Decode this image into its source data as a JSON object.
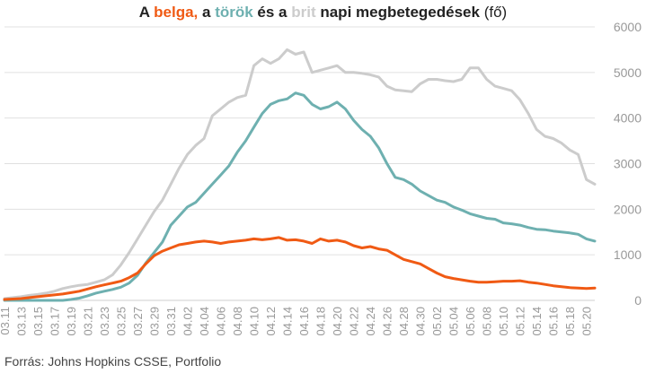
{
  "title": {
    "prefix": "A ",
    "belgian": "belga,",
    "mid1": " a ",
    "turkish": "török",
    "mid2": " és a ",
    "british": "brit",
    "suffix": " napi megbetegedések",
    "paren": " (fő)"
  },
  "source": "Forrás: Johns Hopkins CSSE, Portfolio",
  "colors": {
    "belgian": "#f05a14",
    "turkish": "#6eb0b0",
    "british": "#cccccc",
    "grid": "#e0e0e0",
    "tick_text": "#999999"
  },
  "chart_data": {
    "type": "line",
    "title": "A belga, a török és a brit napi megbetegedések (fő)",
    "xlabel": "",
    "ylabel": "",
    "ylim": [
      0,
      6000
    ],
    "yticks": [
      0,
      1000,
      2000,
      3000,
      4000,
      5000,
      6000
    ],
    "grid": true,
    "legend": "none (series named by colored words in title)",
    "x": [
      "03.11",
      "03.12",
      "03.13",
      "03.14",
      "03.15",
      "03.16",
      "03.17",
      "03.18",
      "03.19",
      "03.20",
      "03.21",
      "03.22",
      "03.23",
      "03.24",
      "03.25",
      "03.26",
      "03.27",
      "03.28",
      "03.29",
      "03.30",
      "03.31",
      "04.01",
      "04.02",
      "04.03",
      "04.04",
      "04.05",
      "04.06",
      "04.07",
      "04.08",
      "04.09",
      "04.10",
      "04.11",
      "04.12",
      "04.13",
      "04.14",
      "04.15",
      "04.16",
      "04.17",
      "04.18",
      "04.19",
      "04.20",
      "04.21",
      "04.22",
      "04.23",
      "04.24",
      "04.25",
      "04.26",
      "04.27",
      "04.28",
      "04.29",
      "04.30",
      "05.01",
      "05.02",
      "05.03",
      "05.04",
      "05.05",
      "05.06",
      "05.07",
      "05.08",
      "05.09",
      "05.10",
      "05.11",
      "05.12",
      "05.13",
      "05.14",
      "05.15",
      "05.16",
      "05.17",
      "05.18",
      "05.19",
      "05.20",
      "05.21"
    ],
    "x_tick_labels": [
      "03.11",
      "03.13",
      "03.15",
      "03.17",
      "03.19",
      "03.21",
      "03.23",
      "03.25",
      "03.27",
      "03.29",
      "03.31",
      "04.02",
      "04.04",
      "04.06",
      "04.08",
      "04.10",
      "04.12",
      "04.14",
      "04.16",
      "04.18",
      "04.20",
      "04.22",
      "04.24",
      "04.26",
      "04.28",
      "04.30",
      "05.02",
      "05.04",
      "05.06",
      "05.08",
      "05.10",
      "05.12",
      "05.14",
      "05.16",
      "05.18",
      "05.20"
    ],
    "series": [
      {
        "name": "belga",
        "color": "#f05a14",
        "values": [
          20,
          30,
          40,
          60,
          80,
          100,
          120,
          140,
          170,
          200,
          250,
          300,
          340,
          380,
          420,
          500,
          600,
          800,
          980,
          1080,
          1150,
          1220,
          1250,
          1280,
          1300,
          1280,
          1250,
          1280,
          1300,
          1320,
          1350,
          1330,
          1350,
          1380,
          1320,
          1330,
          1300,
          1250,
          1350,
          1300,
          1320,
          1280,
          1200,
          1150,
          1180,
          1130,
          1100,
          1000,
          900,
          850,
          800,
          700,
          600,
          520,
          480,
          450,
          420,
          400,
          400,
          410,
          420,
          420,
          430,
          400,
          380,
          350,
          320,
          300,
          280,
          270,
          260,
          270
        ]
      },
      {
        "name": "török",
        "color": "#6eb0b0",
        "values": [
          0,
          0,
          0,
          0,
          0,
          0,
          0,
          0,
          20,
          50,
          100,
          160,
          200,
          240,
          290,
          380,
          550,
          820,
          1050,
          1280,
          1650,
          1850,
          2050,
          2150,
          2350,
          2550,
          2750,
          2950,
          3250,
          3500,
          3800,
          4100,
          4300,
          4380,
          4420,
          4550,
          4500,
          4300,
          4200,
          4250,
          4350,
          4200,
          3950,
          3750,
          3600,
          3350,
          3000,
          2700,
          2650,
          2550,
          2400,
          2300,
          2200,
          2150,
          2050,
          1980,
          1900,
          1850,
          1800,
          1780,
          1700,
          1680,
          1650,
          1600,
          1560,
          1550,
          1520,
          1500,
          1480,
          1450,
          1350,
          1300
        ]
      },
      {
        "name": "brit",
        "color": "#cccccc",
        "values": [
          40,
          60,
          80,
          110,
          130,
          160,
          200,
          260,
          300,
          330,
          350,
          400,
          450,
          560,
          780,
          1050,
          1350,
          1650,
          1950,
          2200,
          2550,
          2900,
          3200,
          3400,
          3550,
          4050,
          4200,
          4350,
          4450,
          4500,
          5150,
          5300,
          5200,
          5300,
          5500,
          5400,
          5450,
          5000,
          5050,
          5100,
          5150,
          5000,
          5000,
          4980,
          4950,
          4900,
          4700,
          4620,
          4600,
          4580,
          4750,
          4850,
          4850,
          4820,
          4800,
          4850,
          5100,
          5100,
          4850,
          4700,
          4650,
          4600,
          4400,
          4100,
          3750,
          3600,
          3550,
          3450,
          3300,
          3200,
          2650,
          2550
        ]
      }
    ]
  }
}
